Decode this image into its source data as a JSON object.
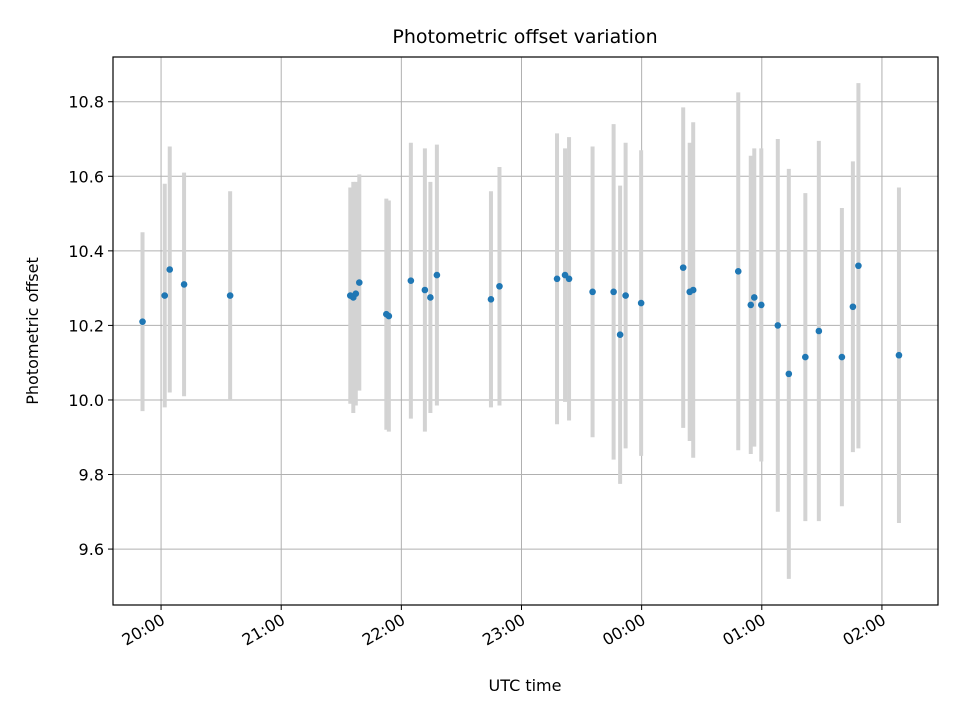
{
  "chart_data": {
    "type": "scatter",
    "title": "Photometric offset variation",
    "xlabel": "UTC time",
    "ylabel": "Photometric offset",
    "x_start": "19:36",
    "x_end": "02:28",
    "ylim": [
      9.45,
      10.92
    ],
    "grid": true,
    "x_ticks": [
      "20:00",
      "21:00",
      "22:00",
      "23:00",
      "00:00",
      "01:00",
      "02:00"
    ],
    "y_ticks": [
      9.6,
      9.8,
      10.0,
      10.2,
      10.4,
      10.6,
      10.8
    ],
    "colors": {
      "point": "#1f77b4",
      "errorbar": "#d3d3d3",
      "grid": "#b0b0b0"
    },
    "series": [
      {
        "points": [
          {
            "x": "19:50:45",
            "y": 10.21,
            "err": 0.24
          },
          {
            "x": "20:01:50",
            "y": 10.28,
            "err": 0.3
          },
          {
            "x": "20:04:20",
            "y": 10.35,
            "err": 0.33
          },
          {
            "x": "20:11:30",
            "y": 10.31,
            "err": 0.3
          },
          {
            "x": "20:34:30",
            "y": 10.28,
            "err": 0.28
          },
          {
            "x": "21:34:30",
            "y": 10.28,
            "err": 0.29
          },
          {
            "x": "21:36:00",
            "y": 10.275,
            "err": 0.31
          },
          {
            "x": "21:37:15",
            "y": 10.285,
            "err": 0.3
          },
          {
            "x": "21:39:00",
            "y": 10.315,
            "err": 0.29
          },
          {
            "x": "21:52:30",
            "y": 10.23,
            "err": 0.31
          },
          {
            "x": "21:53:45",
            "y": 10.225,
            "err": 0.31
          },
          {
            "x": "22:04:45",
            "y": 10.32,
            "err": 0.37
          },
          {
            "x": "22:11:45",
            "y": 10.295,
            "err": 0.38
          },
          {
            "x": "22:14:30",
            "y": 10.275,
            "err": 0.31
          },
          {
            "x": "22:17:45",
            "y": 10.335,
            "err": 0.35
          },
          {
            "x": "22:44:45",
            "y": 10.27,
            "err": 0.29
          },
          {
            "x": "22:49:00",
            "y": 10.305,
            "err": 0.32
          },
          {
            "x": "23:17:45",
            "y": 10.325,
            "err": 0.39
          },
          {
            "x": "23:21:45",
            "y": 10.335,
            "err": 0.34
          },
          {
            "x": "23:23:45",
            "y": 10.325,
            "err": 0.38
          },
          {
            "x": "23:35:30",
            "y": 10.29,
            "err": 0.39
          },
          {
            "x": "23:46:00",
            "y": 10.29,
            "err": 0.45
          },
          {
            "x": "23:49:15",
            "y": 10.175,
            "err": 0.4
          },
          {
            "x": "23:52:00",
            "y": 10.28,
            "err": 0.41
          },
          {
            "x": "23:59:45",
            "y": 10.26,
            "err": 0.41
          },
          {
            "x": "00:20:45",
            "y": 10.355,
            "err": 0.43
          },
          {
            "x": "00:24:00",
            "y": 10.29,
            "err": 0.4
          },
          {
            "x": "00:25:45",
            "y": 10.295,
            "err": 0.45
          },
          {
            "x": "00:48:15",
            "y": 10.345,
            "err": 0.48
          },
          {
            "x": "00:54:30",
            "y": 10.255,
            "err": 0.4
          },
          {
            "x": "00:56:15",
            "y": 10.275,
            "err": 0.4
          },
          {
            "x": "00:59:45",
            "y": 10.255,
            "err": 0.42
          },
          {
            "x": "01:08:00",
            "y": 10.2,
            "err": 0.5
          },
          {
            "x": "01:13:30",
            "y": 10.07,
            "err": 0.55
          },
          {
            "x": "01:21:45",
            "y": 10.115,
            "err": 0.44
          },
          {
            "x": "01:28:30",
            "y": 10.185,
            "err": 0.51
          },
          {
            "x": "01:40:00",
            "y": 10.115,
            "err": 0.4
          },
          {
            "x": "01:45:30",
            "y": 10.25,
            "err": 0.39
          },
          {
            "x": "01:48:15",
            "y": 10.36,
            "err": 0.49
          },
          {
            "x": "02:08:30",
            "y": 10.12,
            "err": 0.45
          }
        ]
      }
    ]
  }
}
